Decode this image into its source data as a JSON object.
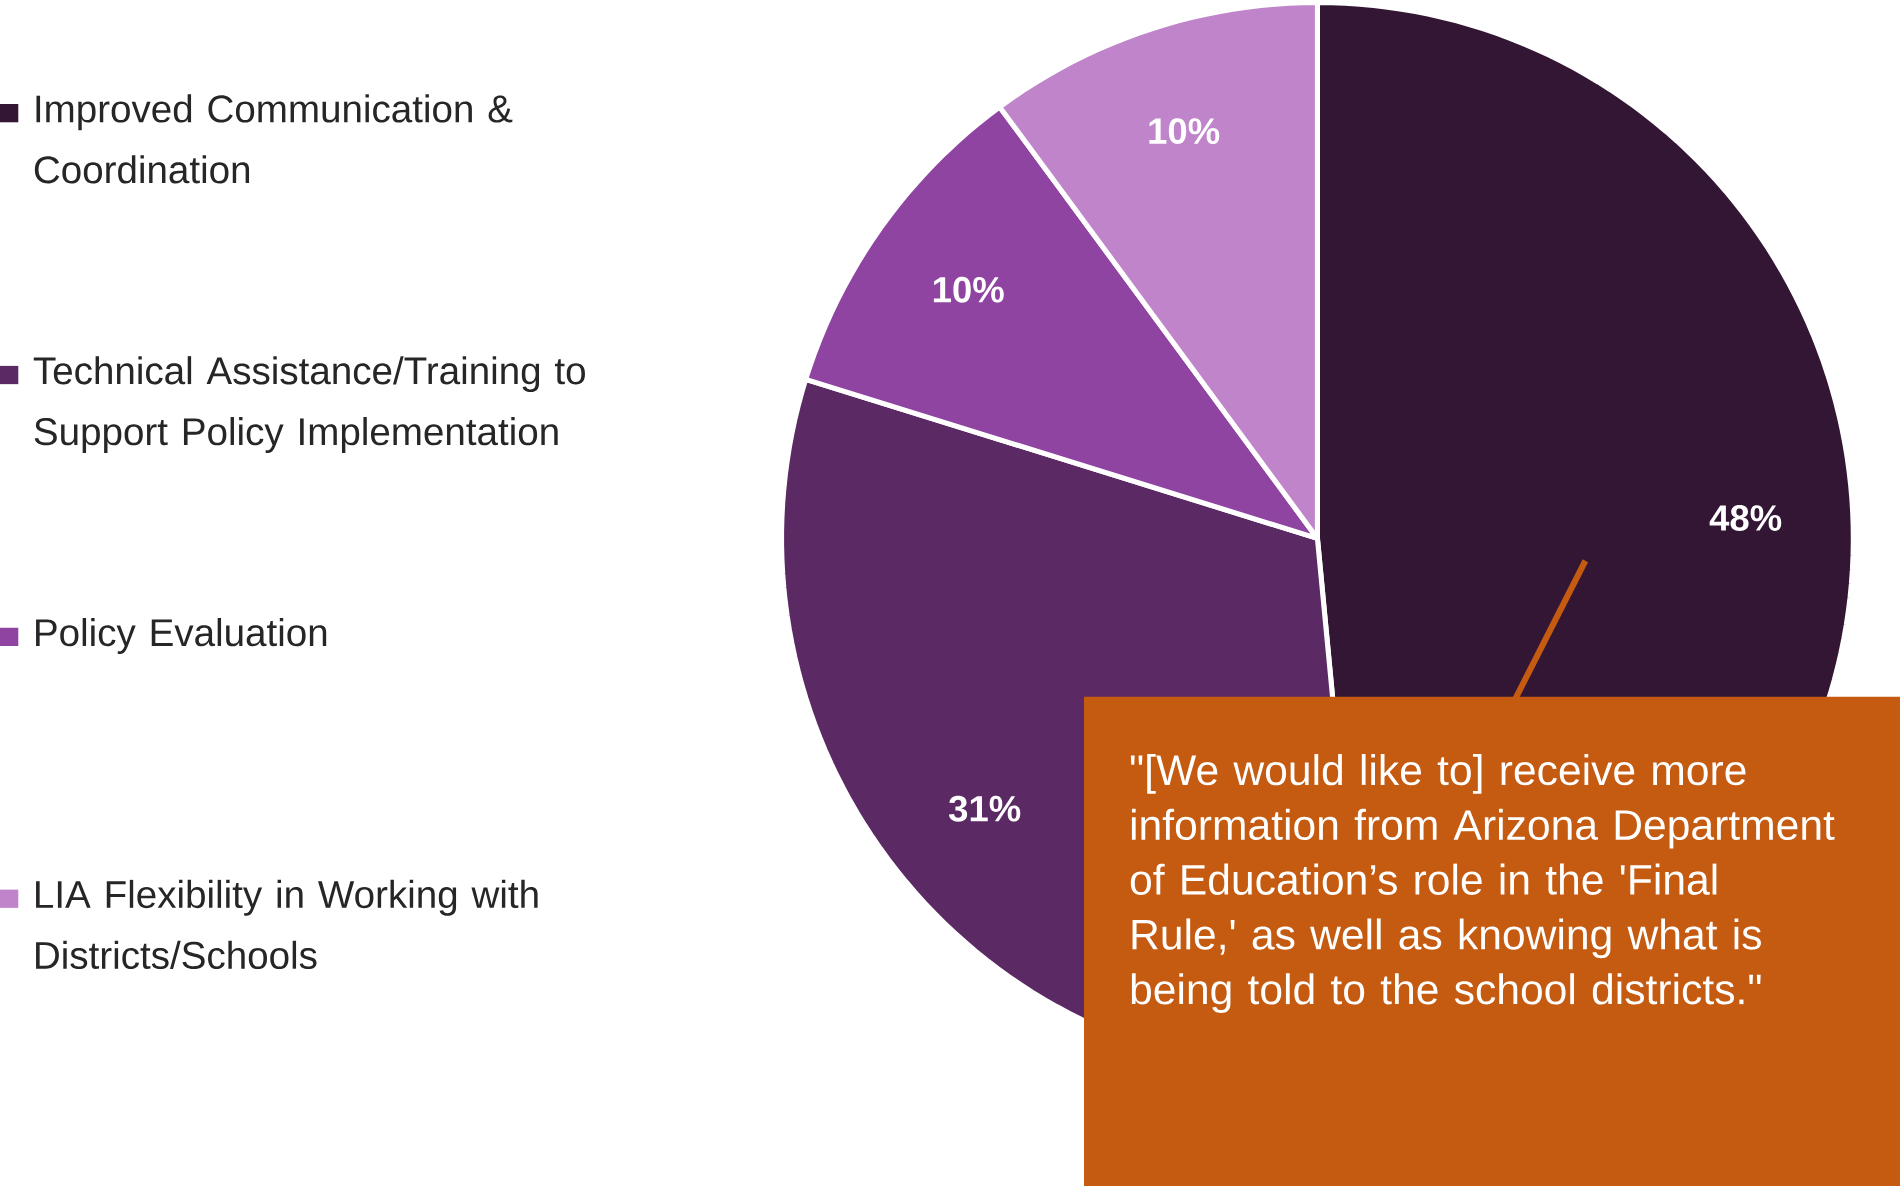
{
  "chart_data": {
    "type": "pie",
    "categories": [
      "Improved Communication & Coordination",
      "Technical Assistance/Training to Support Policy Implementation",
      "Policy Evaluation",
      "LIA Flexibility in Working with Districts/Schools"
    ],
    "values": [
      48,
      31,
      10,
      10
    ],
    "colors": [
      "#321634",
      "#5b2963",
      "#8e44a0",
      "#c084cb"
    ],
    "value_labels": [
      "48%",
      "31%",
      "10%",
      "10%"
    ],
    "legend": "left",
    "annotations": [
      "\"[We would like to] receive more information from Arizona Department of Education’s role in the 'Final Rule,' as well as knowing what is being told to the school districts.\""
    ]
  }
}
